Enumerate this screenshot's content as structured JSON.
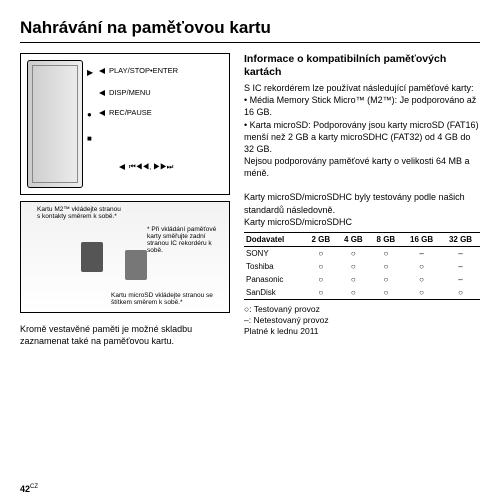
{
  "title": "Nahrávání na paměťovou kartu",
  "diagramTop": {
    "labels": {
      "playStop": "PLAY/STOP•ENTER",
      "dispMenu": "DISP/MENU",
      "recPause": "REC/PAUSE",
      "seek": "⏮◀◀, ▶▶⏭"
    }
  },
  "diagramBot": {
    "callout1": "Kartu M2™ vkládejte stranou s kontakty směrem k sobě.*",
    "callout2": "* Při vkládání paměťové karty směřujte zadní stranou IC rekordéru k sobě.",
    "callout3": "Kartu microSD vkládejte stranou se štítkem směrem k sobě.*"
  },
  "leftText": "Kromě vestavěné paměti je možné skladbu zaznamenat také na paměťovou kartu.",
  "right": {
    "subhead": "Informace o kompatibilních paměťových kartách",
    "intro": "S IC rekordérem lze používat následující paměťové karty:",
    "bullet1": "Média Memory Stick Micro™ (M2™): Je podporováno až 16 GB.",
    "bullet2": "Karta microSD: Podporovány jsou karty microSD (FAT16) menší než 2 GB a karty microSDHC (FAT32) od 4 GB do 32 GB.",
    "noSupport": "Nejsou podporovány paměťové karty o velikosti 64 MB a méně.",
    "tested1": "Karty microSD/microSDHC byly testovány podle našich standardů následovně.",
    "tested2": "Karty microSD/microSDHC"
  },
  "table": {
    "headers": [
      "Dodavatel",
      "2 GB",
      "4 GB",
      "8 GB",
      "16 GB",
      "32 GB"
    ],
    "rows": [
      [
        "SONY",
        "○",
        "○",
        "○",
        "–",
        "–"
      ],
      [
        "Toshiba",
        "○",
        "○",
        "○",
        "○",
        "–"
      ],
      [
        "Panasonic",
        "○",
        "○",
        "○",
        "○",
        "–"
      ],
      [
        "SanDisk",
        "○",
        "○",
        "○",
        "○",
        "○"
      ]
    ]
  },
  "legend": {
    "l1": "○: Testovaný provoz",
    "l2": "–: Netestovaný provoz",
    "l3": "Platné k lednu 2011"
  },
  "pageNum": "42",
  "pageSuffix": "CZ"
}
